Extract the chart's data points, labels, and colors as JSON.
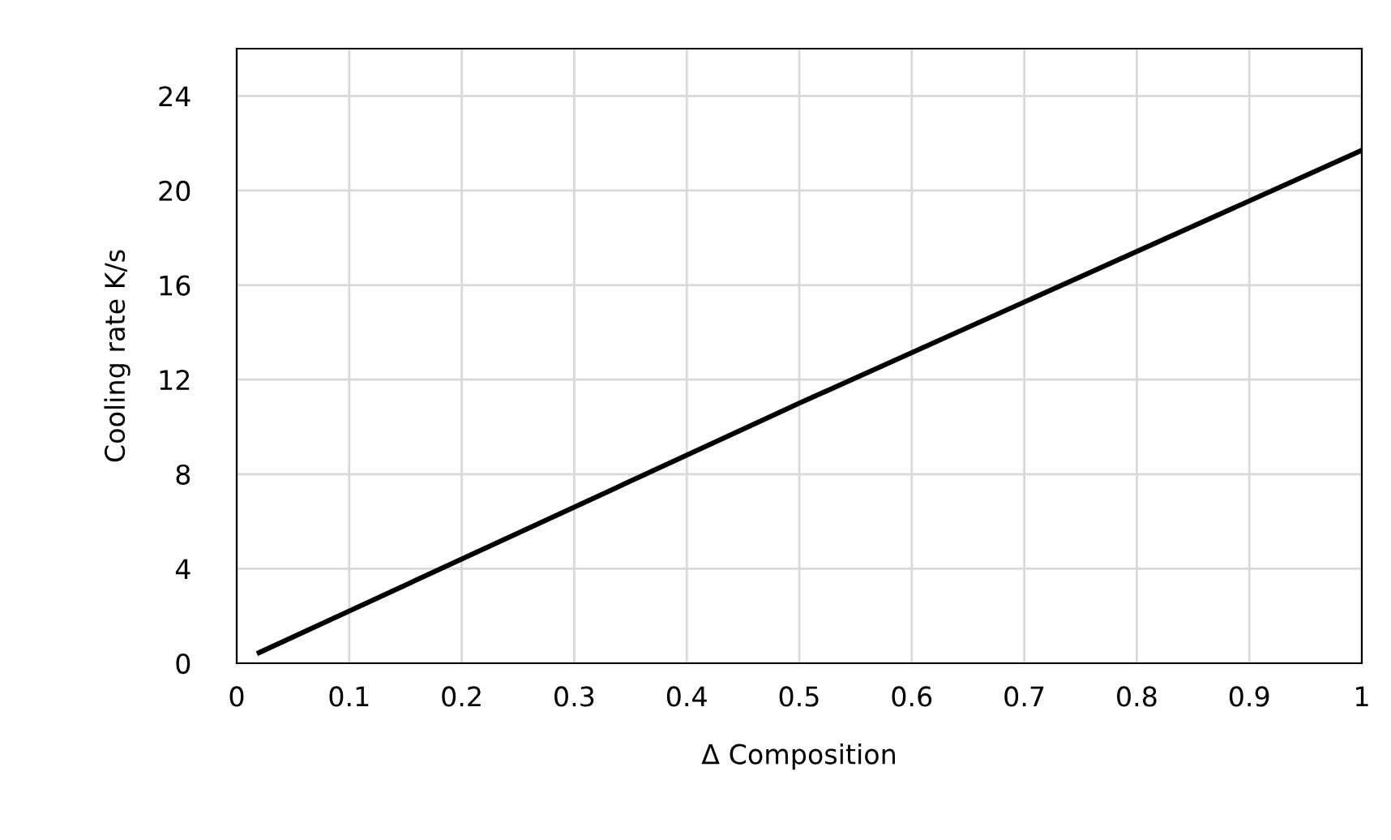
{
  "chart_data": {
    "type": "line",
    "xlabel": "Δ Composition",
    "ylabel": "Cooling rate K/s",
    "series": [
      {
        "color": "#000000",
        "x": [
          0.02,
          0.5,
          1.0
        ],
        "values": [
          0.45,
          11.0,
          21.7
        ]
      }
    ],
    "xlim": [
      0,
      1
    ],
    "xticks": [
      0,
      0.1,
      0.2,
      0.3,
      0.4,
      0.5,
      0.6,
      0.7,
      0.8,
      0.9,
      1
    ],
    "ylim": [
      0,
      26
    ],
    "yticks": [
      0,
      4,
      8,
      12,
      16,
      20,
      24
    ],
    "grid": true,
    "marker": "none",
    "line_style": "solid"
  }
}
